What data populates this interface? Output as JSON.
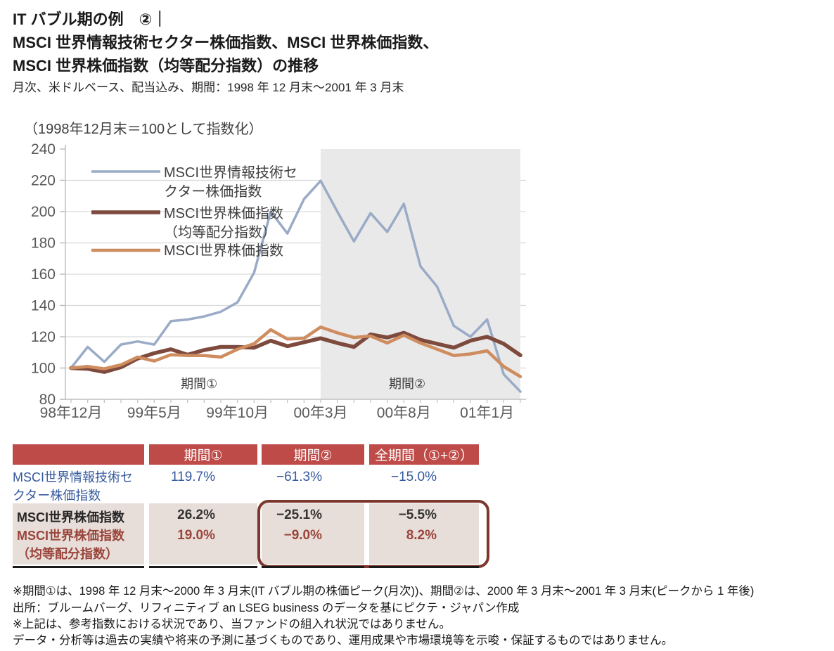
{
  "title": {
    "line1": "IT バブル期の例　②｜",
    "line2": "MSCI 世界情報技術セクター株価指数、MSCI 世界株価指数、",
    "line3": "MSCI 世界株価指数（均等配分指数）の推移",
    "subtitle": "月次、米ドルベース、配当込み、期間：1998 年 12 月末～2001 年 3 月末"
  },
  "chart_data": {
    "type": "line",
    "axis_note": "（1998年12月末＝100として指数化）",
    "ylim": [
      80,
      240
    ],
    "ytick_step": 20,
    "n_months": 28,
    "x_start": "1998-12",
    "x_end": "2001-03",
    "x_tick_labels": [
      "98年12月",
      "99年5月",
      "99年10月",
      "00年3月",
      "00年8月",
      "01年1月"
    ],
    "x_tick_months": [
      0,
      5,
      10,
      15,
      20,
      25
    ],
    "shaded_region_months": [
      15,
      27
    ],
    "shading_color": "#E9E9E9",
    "grid_color": "#D9D9D9",
    "axis_color": "#BFBFBF",
    "period_labels": [
      {
        "text": "期間①",
        "month": 7.7,
        "value": 87.3
      },
      {
        "text": "期間②",
        "month": 20.2,
        "value": 87.3
      }
    ],
    "series": [
      {
        "name": "MSCI世界情報技術セクター株価指数",
        "legend_lines": [
          "MSCI世界情報技術セ",
          "クター株価指数"
        ],
        "color": "#9AABC7",
        "width": 3.5,
        "values": [
          100,
          113.5,
          104,
          115,
          117,
          115,
          130,
          131,
          133,
          136,
          142,
          161,
          200,
          186,
          208,
          219.7,
          200,
          181,
          199,
          187,
          205,
          165,
          152,
          127,
          120,
          131,
          96,
          84.9
        ]
      },
      {
        "name": "MSCI世界株価指数（均等配分指数）",
        "legend_lines": [
          "MSCI世界株価指数",
          "（均等配分指数）"
        ],
        "color": "#7D4A3D",
        "width": 5.5,
        "values": [
          100,
          99.5,
          97.5,
          100.5,
          106,
          109.5,
          112,
          108.5,
          111.5,
          113.5,
          113.5,
          113,
          117.5,
          114,
          116.5,
          119,
          116,
          113.5,
          121.5,
          119.5,
          122.5,
          118,
          115.5,
          113,
          117.5,
          120,
          115.5,
          108.2
        ]
      },
      {
        "name": "MSCI世界株価指数",
        "legend_lines": [
          "MSCI世界株価指数"
        ],
        "color": "#CE8C5F",
        "width": 4.5,
        "values": [
          100,
          101,
          99.5,
          102,
          107,
          104.5,
          108.5,
          108,
          108,
          107,
          112,
          115.5,
          124.5,
          118.5,
          119,
          126.2,
          122.5,
          119.5,
          120.5,
          116,
          121,
          116,
          112,
          108,
          109,
          111,
          101,
          94.5
        ]
      }
    ]
  },
  "table": {
    "header": [
      "",
      "期間①",
      "期間②",
      "全期間（①+②）"
    ],
    "rows": [
      {
        "label": "MSCI世界情報技術セクター株価指数",
        "label_lines": [
          "MSCI世界情報技術セ",
          "クター株価指数"
        ],
        "values": [
          "119.7%",
          "−61.3%",
          "−15.0%"
        ]
      },
      {
        "label": "MSCI世界株価指数",
        "label_lines": [
          "MSCI世界株価指数"
        ],
        "values": [
          "26.2%",
          "−25.1%",
          "−5.5%"
        ]
      },
      {
        "label": "MSCI世界株価指数（均等配分指数）",
        "label_lines": [
          "MSCI世界株価指数",
          "（均等配分指数）"
        ],
        "values": [
          "19.0%",
          "−9.0%",
          "8.2%"
        ]
      }
    ],
    "header_bg": "#BE4B48",
    "row1_text_color": "#35599F",
    "row3_text_color": "#9A453B",
    "highlight_border_color": "#7C372E"
  },
  "footnotes": [
    "※期間①は、1998 年 12 月末～2000 年 3 月末(IT バブル期の株価ピーク(月次))、期間②は、2000 年 3 月末～2001 年 3 月末(ピークから 1 年後)",
    "出所：ブルームバーグ、リフィニティブ an LSEG business のデータを基にピクテ・ジャパン作成",
    "※上記は、参考指数における状況であり、当ファンドの組入れ状況ではありません。",
    "データ・分析等は過去の実績や将来の予測に基づくものであり、運用成果や市場環境等を示唆・保証するものではありません。"
  ]
}
